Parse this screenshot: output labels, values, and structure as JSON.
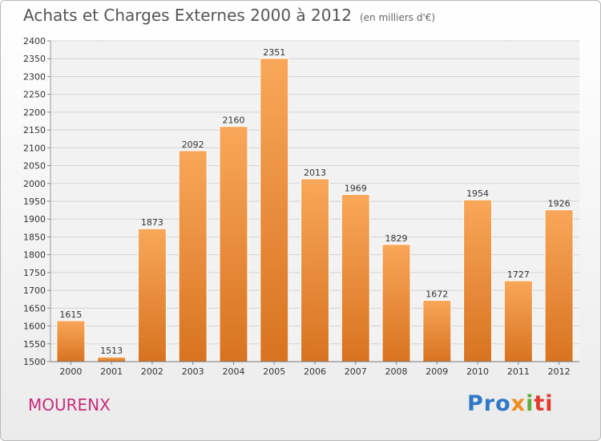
{
  "chart_data": {
    "type": "bar",
    "title": "Achats et Charges Externes 2000 à 2012",
    "subtitle": "(en milliers d'€)",
    "categories": [
      "2000",
      "2001",
      "2002",
      "2003",
      "2004",
      "2005",
      "2006",
      "2007",
      "2008",
      "2009",
      "2010",
      "2011",
      "2012"
    ],
    "values": [
      1615,
      1513,
      1873,
      2092,
      2160,
      2351,
      2013,
      1969,
      1829,
      1672,
      1954,
      1727,
      1926
    ],
    "ylim": [
      1500,
      2400
    ],
    "yticks": [
      1500,
      1550,
      1600,
      1650,
      1700,
      1750,
      1800,
      1850,
      1900,
      1950,
      2000,
      2050,
      2100,
      2150,
      2200,
      2250,
      2300,
      2350,
      2400
    ],
    "grid": true,
    "bar_color_top": "#f9a75a",
    "bar_color_bottom": "#d87320"
  },
  "city": "MOURENX",
  "logo": {
    "p1": "Pro",
    "p2": "x",
    "p3": "i",
    "p4": "ti"
  }
}
